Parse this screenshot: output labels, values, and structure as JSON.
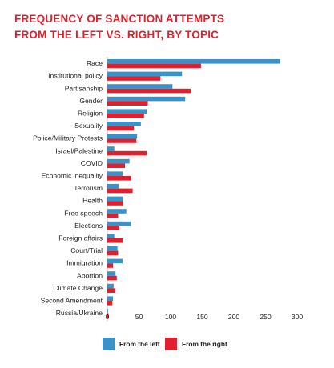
{
  "chart_data": {
    "type": "bar",
    "orientation": "horizontal",
    "title_lines": [
      "FREQUENCY OF SANCTION ATTEMPTS",
      "FROM THE LEFT VS. RIGHT, BY TOPIC"
    ],
    "categories": [
      "Race",
      "Institutional policy",
      "Partisanship",
      "Gender",
      "Religion",
      "Sexuality",
      "Police/Military Protests",
      "Israel/Palestine",
      "COVID",
      "Economic inequality",
      "Terrorism",
      "Health",
      "Free speech",
      "Elections",
      "Foreign affairs",
      "Court/Trial",
      "Immigration",
      "Abortion",
      "Climate Change",
      "Second Amendment",
      "Russia/Ukraine"
    ],
    "series": [
      {
        "name": "From the left",
        "color": "#3a93c8",
        "values": [
          273,
          118,
          103,
          123,
          62,
          53,
          47,
          11,
          35,
          24,
          18,
          25,
          30,
          37,
          11,
          16,
          24,
          13,
          10,
          9,
          1
        ]
      },
      {
        "name": "From the right",
        "color": "#e0202c",
        "values": [
          148,
          84,
          132,
          64,
          58,
          42,
          46,
          62,
          28,
          38,
          40,
          25,
          17,
          19,
          25,
          17,
          9,
          15,
          13,
          8,
          2
        ]
      }
    ],
    "xlim": [
      0,
      300
    ],
    "xticks": [
      "0",
      "50",
      "100",
      "150",
      "200",
      "250",
      "300"
    ],
    "grid": false,
    "legend_position": "bottom"
  }
}
